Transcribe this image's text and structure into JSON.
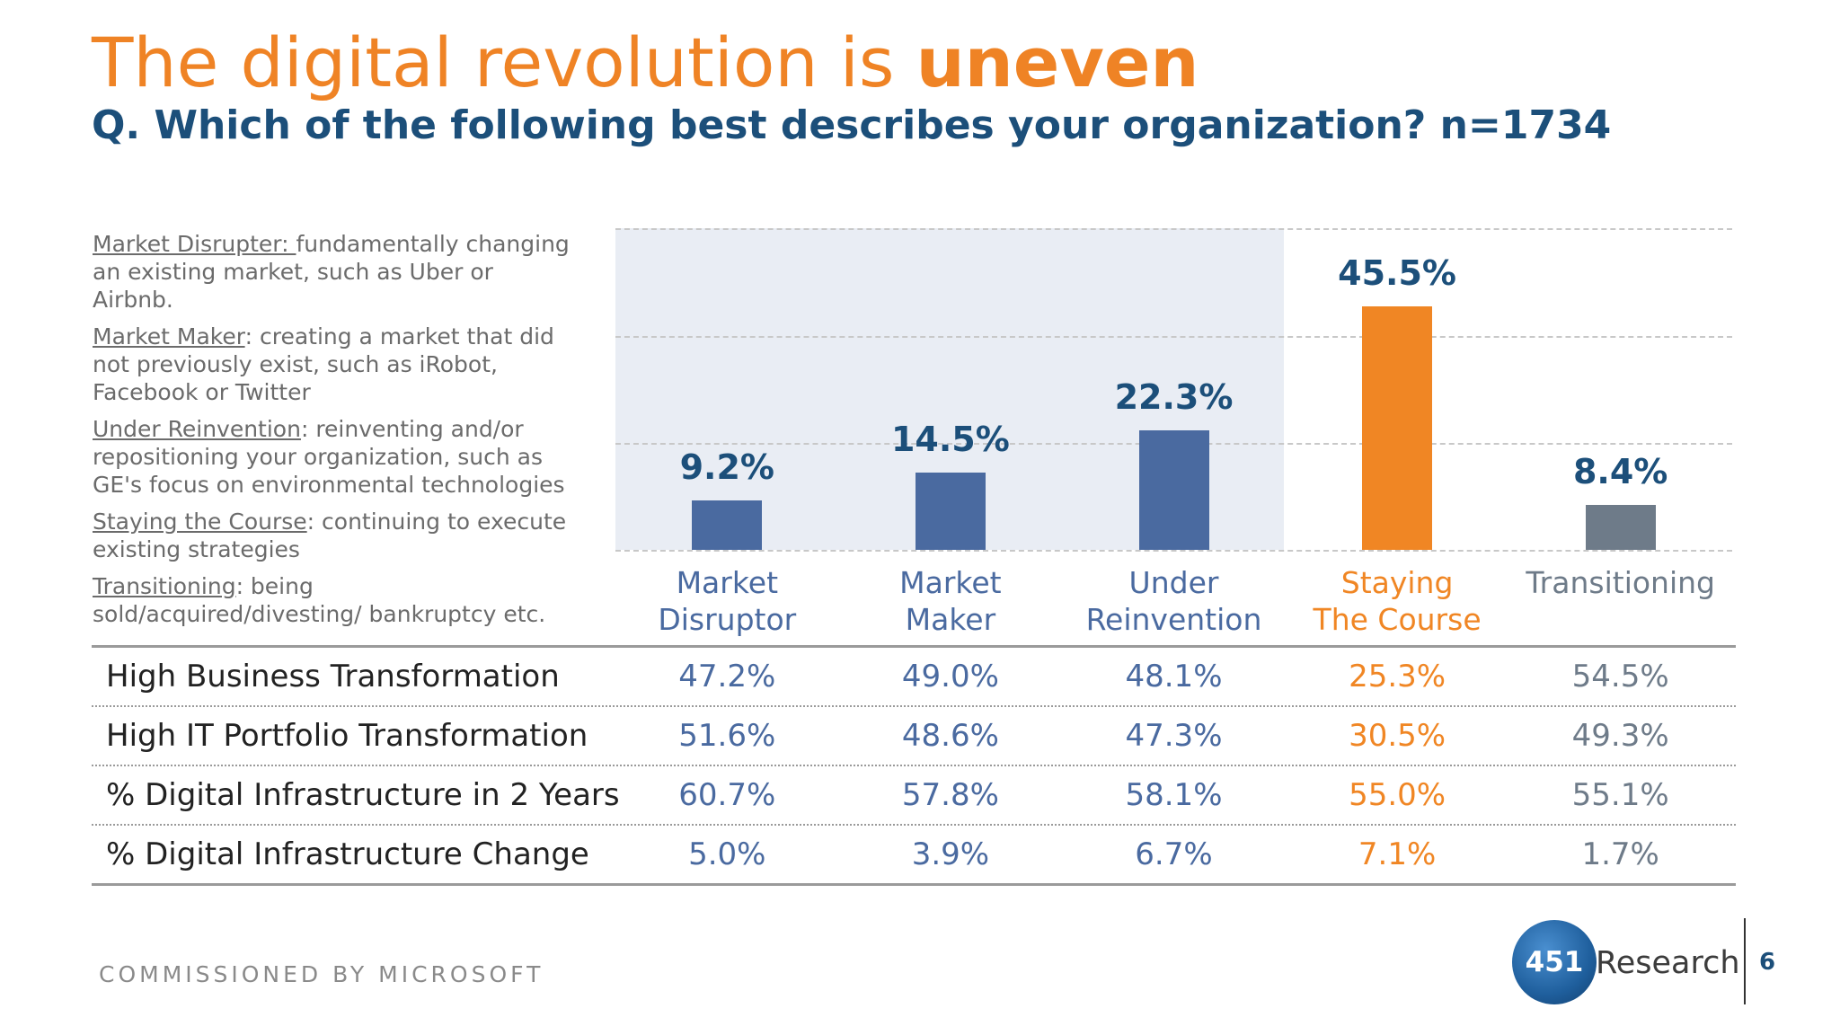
{
  "title": {
    "lead": "The digital revolution is ",
    "emphasis": "uneven"
  },
  "subtitle": "Q. Which of the following best describes your organization? n=1734",
  "definitions": [
    {
      "term": "Market Disrupter: ",
      "text": "fundamentally changing an existing market, such as Uber or Airbnb."
    },
    {
      "term": "Market Maker",
      "text": ": creating a market that did not previously exist, such as iRobot, Facebook or Twitter"
    },
    {
      "term": "Under Reinvention",
      "text": ": reinventing and/or repositioning your organization, such as GE's focus on environmental technologies"
    },
    {
      "term": "Staying the Course",
      "text": ": continuing to execute existing strategies"
    },
    {
      "term": "Transitioning",
      "text": ": being sold/acquired/divesting/ bankruptcy etc."
    }
  ],
  "chart_data": {
    "type": "bar",
    "categories": [
      "Market Disruptor",
      "Market Maker",
      "Under Reinvention",
      "Staying The Course",
      "Transitioning"
    ],
    "values": [
      9.2,
      14.5,
      22.3,
      45.5,
      8.4
    ],
    "value_labels": [
      "9.2%",
      "14.5%",
      "22.3%",
      "45.5%",
      "8.4%"
    ],
    "bar_colors": [
      "#4a6aa0",
      "#4a6aa0",
      "#4a6aa0",
      "#f08624",
      "#6e7b89"
    ],
    "label_colors": [
      "#1c4f7a",
      "#1c4f7a",
      "#1c4f7a",
      "#1c4f7a",
      "#1c4f7a"
    ],
    "category_colors": [
      "#4a6aa0",
      "#4a6aa0",
      "#4a6aa0",
      "#f08624",
      "#6e7b89"
    ],
    "highlight_first_n": 3,
    "highlight_color": "#e9edf4",
    "grid": true,
    "ylim": [
      0,
      60
    ],
    "xlabel": "",
    "ylabel": ""
  },
  "table": {
    "rows": [
      {
        "label": "High Business Transformation",
        "values": [
          "47.2%",
          "49.0%",
          "48.1%",
          "25.3%",
          "54.5%"
        ]
      },
      {
        "label": "High IT Portfolio Transformation",
        "values": [
          "51.6%",
          "48.6%",
          "47.3%",
          "30.5%",
          "49.3%"
        ]
      },
      {
        "label": "% Digital Infrastructure in 2 Years",
        "values": [
          "60.7%",
          "57.8%",
          "58.1%",
          "55.0%",
          "55.1%"
        ]
      },
      {
        "label": "% Digital Infrastructure Change",
        "values": [
          "5.0%",
          "3.9%",
          "6.7%",
          "7.1%",
          "1.7%"
        ]
      }
    ],
    "cell_colors": [
      "#4a6aa0",
      "#4a6aa0",
      "#4a6aa0",
      "#f08624",
      "#6e7b89"
    ]
  },
  "footer": "COMMISSIONED BY MICROSOFT",
  "logo": {
    "number": "451",
    "word": "Research"
  },
  "page_number": "6"
}
